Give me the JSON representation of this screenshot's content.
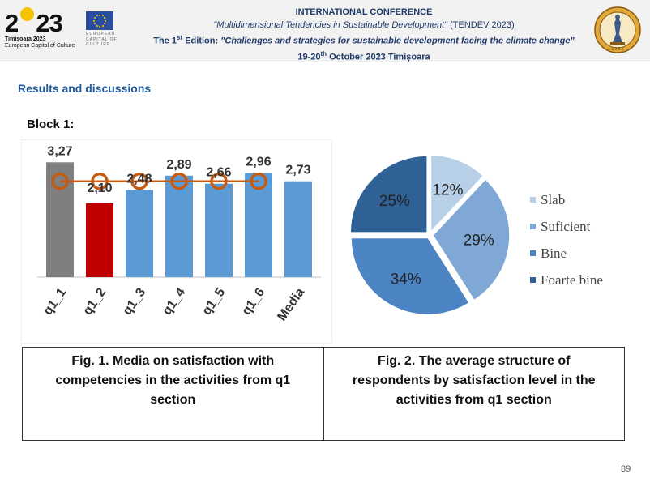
{
  "header": {
    "logo_number_left": "2",
    "logo_number_right": "23",
    "logo_city": "Timișoara 2023",
    "logo_tagline": "European Capital of Culture",
    "eu_text": "EUROPEAN CAPITAL OF CULTURE",
    "conf_line1": "INTERNATIONAL CONFERENCE",
    "conf_line2_title": "\"Multidimensional Tendencies in Sustainable Development\"",
    "conf_line2_acronym": " (TENDEV 2023)",
    "conf_line3_prefix": "The 1",
    "conf_line3_sup": "st",
    "conf_line3_mid": " Edition: ",
    "conf_line3_title": "\"Challenges and strategies for sustainable development facing the climate change\"",
    "conf_line4_date": "19-20",
    "conf_line4_sup": "th",
    "conf_line4_rest": " October 2023 Timișoara",
    "crest_year": "1 9 6 2",
    "crest_icon": "university-crest-icon"
  },
  "section_title": "Results and discussions",
  "block_title": "Block 1:",
  "colors": {
    "gray": "#7f7f7f",
    "red": "#c00000",
    "blue": "#5b9bd5",
    "orange": "#c55a11",
    "pie": [
      "#b8cfe8",
      "#7fa8d6",
      "#4d84c4",
      "#2f6197"
    ]
  },
  "chart_data": [
    {
      "type": "bar",
      "categories": [
        "q1_1",
        "q1_2",
        "q1_3",
        "q1_4",
        "q1_5",
        "q1_6",
        "Media"
      ],
      "values": [
        3.27,
        2.1,
        2.48,
        2.89,
        2.66,
        2.96,
        2.73
      ],
      "value_labels": [
        "3,27",
        "2,10",
        "2,48",
        "2,89",
        "2,66",
        "2,96",
        "2,73"
      ],
      "bar_colors": [
        "#7f7f7f",
        "#c00000",
        "#5b9bd5",
        "#5b9bd5",
        "#5b9bd5",
        "#5b9bd5",
        "#5b9bd5"
      ],
      "overlay_line": {
        "type": "line",
        "color": "#c55a11",
        "marker": "circle",
        "values": [
          2.73,
          2.73,
          2.73,
          2.73,
          2.73,
          2.73
        ]
      },
      "ylim": [
        0,
        3.6
      ],
      "title": "",
      "xlabel": "",
      "ylabel": ""
    },
    {
      "type": "pie",
      "categories": [
        "Slab",
        "Suficient",
        "Bine",
        "Foarte bine"
      ],
      "values": [
        12,
        29,
        34,
        25
      ],
      "value_labels": [
        "12%",
        "29%",
        "34%",
        "25%"
      ],
      "colors": [
        "#b8cfe8",
        "#7fa8d6",
        "#4d84c4",
        "#2f6197"
      ],
      "legend_position": "right"
    }
  ],
  "captions": {
    "fig1": "Fig. 1. Media on satisfaction with competencies in the activities from q1 section",
    "fig2": "Fig. 2. The average structure of respondents by satisfaction level in the activities from q1 section"
  },
  "page_number": "89"
}
